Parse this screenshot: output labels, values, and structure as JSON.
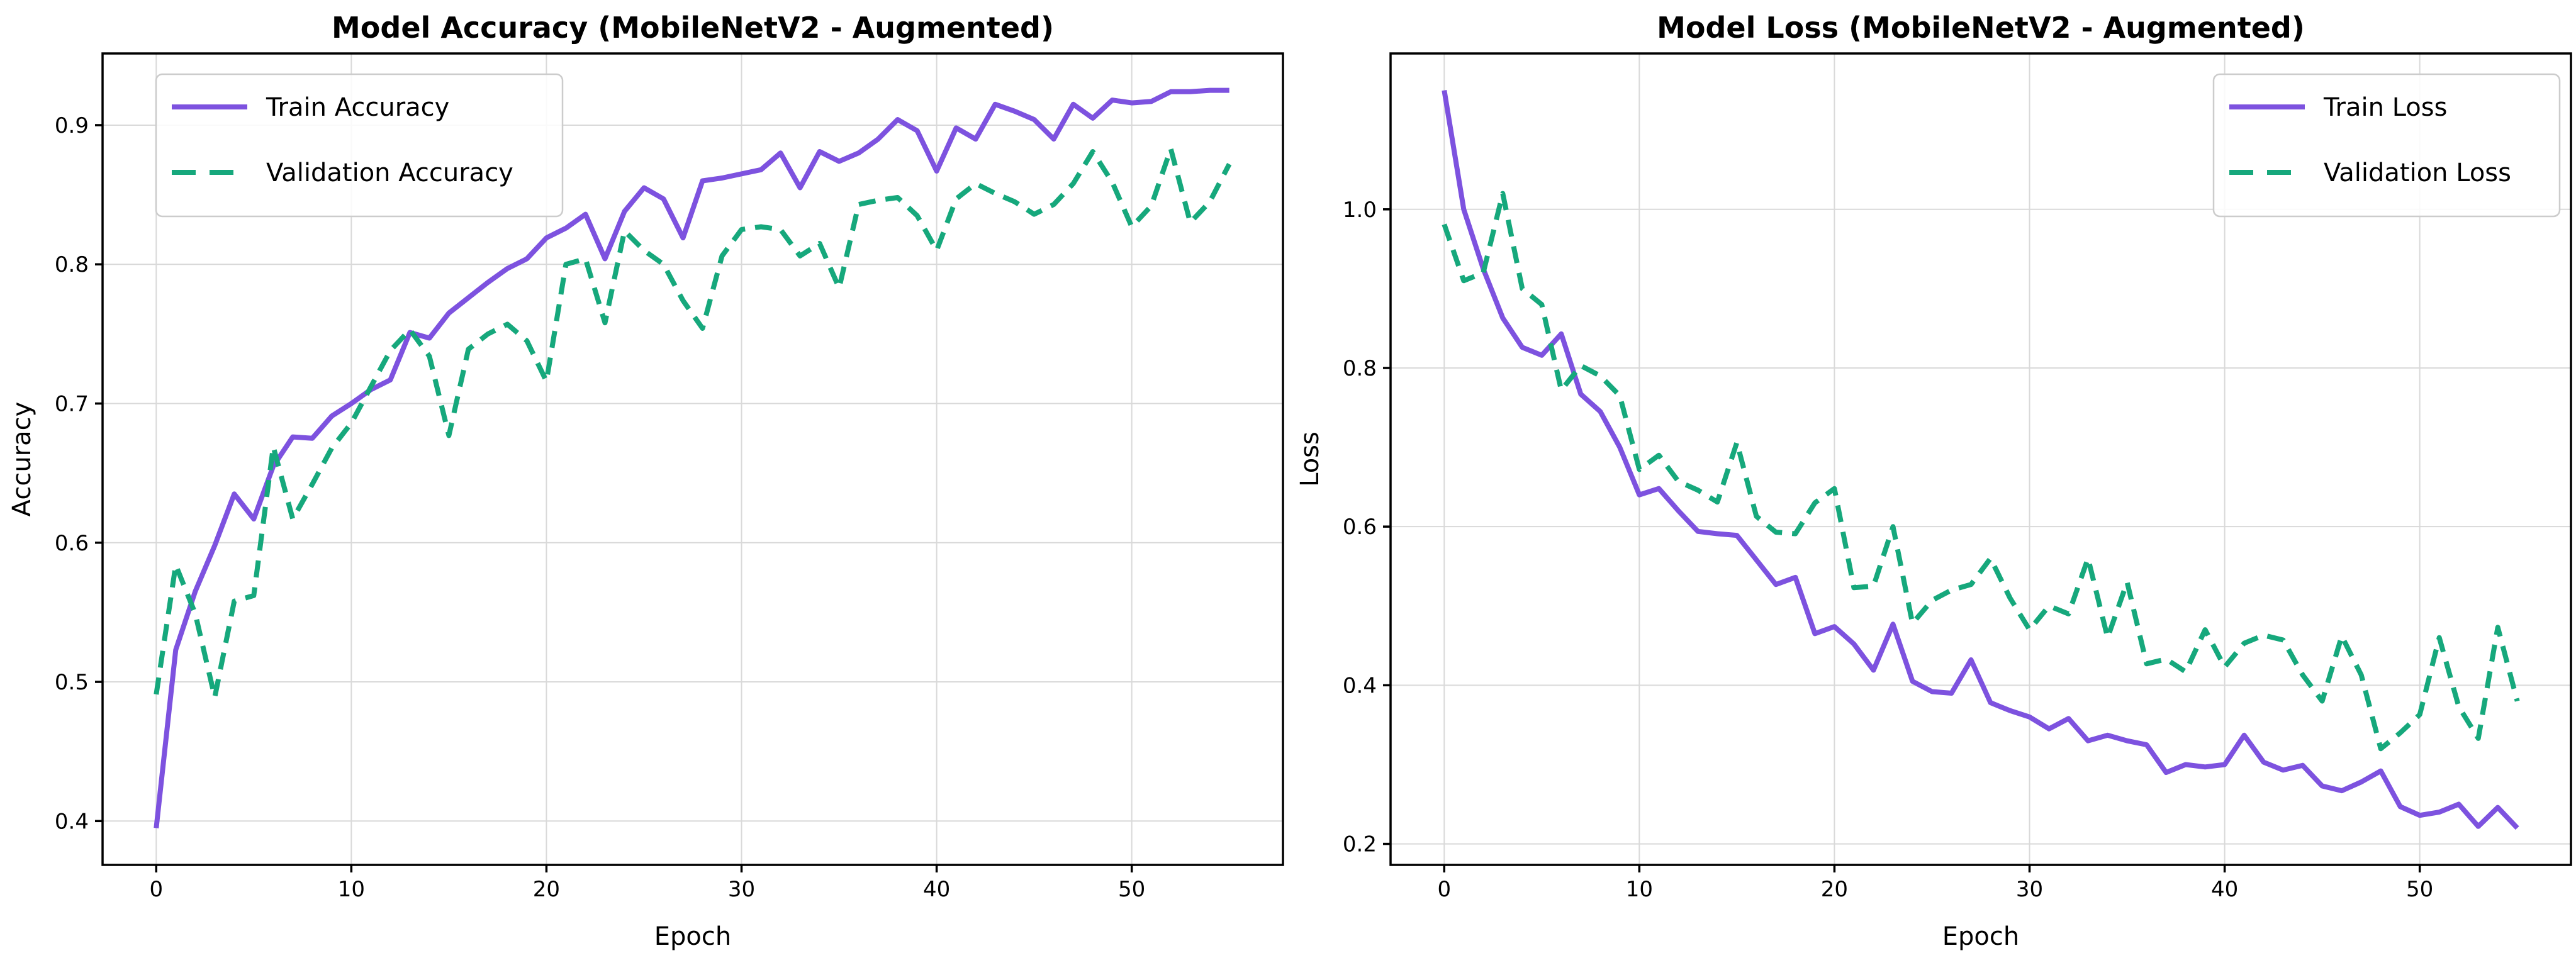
{
  "figure": {
    "background": "#ffffff",
    "grid_color": "#d9d9d9",
    "spine_color": "#000000",
    "text_color": "#000000",
    "train_color": "#7d52df",
    "val_color": "#16a87c"
  },
  "epochs": [
    0,
    1,
    2,
    3,
    4,
    5,
    6,
    7,
    8,
    9,
    10,
    11,
    12,
    13,
    14,
    15,
    16,
    17,
    18,
    19,
    20,
    21,
    22,
    23,
    24,
    25,
    26,
    27,
    28,
    29,
    30,
    31,
    32,
    33,
    34,
    35,
    36,
    37,
    38,
    39,
    40,
    41,
    42,
    43,
    44,
    45,
    46,
    47,
    48,
    49,
    50,
    51,
    52,
    53,
    54,
    55
  ],
  "chart_data": [
    {
      "type": "line",
      "title": "Model Accuracy (MobileNetV2 - Augmented)",
      "xlabel": "Epoch",
      "ylabel": "Accuracy",
      "xlim": [
        -2.75,
        57.75
      ],
      "ylim": [
        0.3685,
        0.9515
      ],
      "xticks": [
        0,
        10,
        20,
        30,
        40,
        50
      ],
      "xtick_labels": [
        "0",
        "10",
        "20",
        "30",
        "40",
        "50"
      ],
      "yticks": [
        0.4,
        0.5,
        0.6,
        0.7,
        0.8,
        0.9
      ],
      "ytick_labels": [
        "0.4",
        "0.5",
        "0.6",
        "0.7",
        "0.8",
        "0.9"
      ],
      "grid": true,
      "legend_position": "upper-left",
      "series": [
        {
          "name": "Train Accuracy",
          "style": "solid",
          "color": "#7d52df",
          "values": [
            0.395,
            0.523,
            0.565,
            0.598,
            0.635,
            0.617,
            0.655,
            0.676,
            0.675,
            0.691,
            0.7,
            0.71,
            0.717,
            0.751,
            0.747,
            0.765,
            0.776,
            0.787,
            0.797,
            0.804,
            0.819,
            0.826,
            0.836,
            0.804,
            0.838,
            0.855,
            0.847,
            0.819,
            0.86,
            0.862,
            0.865,
            0.868,
            0.88,
            0.855,
            0.881,
            0.874,
            0.88,
            0.89,
            0.904,
            0.896,
            0.867,
            0.898,
            0.89,
            0.915,
            0.91,
            0.904,
            0.89,
            0.915,
            0.905,
            0.918,
            0.916,
            0.917,
            0.924,
            0.924,
            0.925,
            0.925
          ]
        },
        {
          "name": "Validation Accuracy",
          "style": "dashed",
          "color": "#16a87c",
          "values": [
            0.491,
            0.584,
            0.549,
            0.489,
            0.558,
            0.562,
            0.669,
            0.617,
            0.642,
            0.668,
            0.686,
            0.712,
            0.738,
            0.753,
            0.734,
            0.677,
            0.739,
            0.75,
            0.757,
            0.745,
            0.716,
            0.8,
            0.804,
            0.758,
            0.824,
            0.81,
            0.8,
            0.774,
            0.754,
            0.806,
            0.825,
            0.827,
            0.825,
            0.806,
            0.815,
            0.783,
            0.843,
            0.846,
            0.848,
            0.835,
            0.81,
            0.847,
            0.858,
            0.851,
            0.845,
            0.836,
            0.843,
            0.858,
            0.881,
            0.859,
            0.827,
            0.842,
            0.883,
            0.83,
            0.845,
            0.872
          ]
        }
      ]
    },
    {
      "type": "line",
      "title": "Model Loss (MobileNetV2 - Augmented)",
      "xlabel": "Epoch",
      "ylabel": "Loss",
      "xlim": [
        -2.75,
        57.75
      ],
      "ylim": [
        0.1735,
        1.1965
      ],
      "xticks": [
        0,
        10,
        20,
        30,
        40,
        50
      ],
      "xtick_labels": [
        "0",
        "10",
        "20",
        "30",
        "40",
        "50"
      ],
      "yticks": [
        0.2,
        0.4,
        0.6,
        0.8,
        1.0
      ],
      "ytick_labels": [
        "0.2",
        "0.4",
        "0.6",
        "0.8",
        "1.0"
      ],
      "grid": true,
      "legend_position": "upper-right",
      "series": [
        {
          "name": "Train Loss",
          "style": "solid",
          "color": "#7d52df",
          "values": [
            1.15,
            1.0,
            0.925,
            0.863,
            0.826,
            0.816,
            0.843,
            0.767,
            0.745,
            0.7,
            0.64,
            0.648,
            0.62,
            0.594,
            0.591,
            0.589,
            0.558,
            0.527,
            0.536,
            0.465,
            0.474,
            0.452,
            0.419,
            0.477,
            0.405,
            0.392,
            0.39,
            0.432,
            0.378,
            0.368,
            0.36,
            0.345,
            0.358,
            0.33,
            0.337,
            0.33,
            0.325,
            0.29,
            0.3,
            0.297,
            0.3,
            0.337,
            0.303,
            0.293,
            0.299,
            0.273,
            0.267,
            0.278,
            0.292,
            0.247,
            0.236,
            0.24,
            0.25,
            0.222,
            0.246,
            0.22
          ]
        },
        {
          "name": "Validation Loss",
          "style": "dashed",
          "color": "#16a87c",
          "values": [
            0.981,
            0.91,
            0.92,
            1.02,
            0.9,
            0.88,
            0.772,
            0.803,
            0.79,
            0.765,
            0.672,
            0.69,
            0.657,
            0.646,
            0.631,
            0.706,
            0.613,
            0.593,
            0.591,
            0.63,
            0.648,
            0.523,
            0.525,
            0.6,
            0.478,
            0.507,
            0.52,
            0.527,
            0.56,
            0.51,
            0.47,
            0.5,
            0.49,
            0.56,
            0.46,
            0.53,
            0.427,
            0.433,
            0.417,
            0.47,
            0.423,
            0.453,
            0.463,
            0.457,
            0.413,
            0.38,
            0.462,
            0.413,
            0.32,
            0.34,
            0.363,
            0.46,
            0.373,
            0.333,
            0.473,
            0.38
          ]
        }
      ]
    }
  ]
}
